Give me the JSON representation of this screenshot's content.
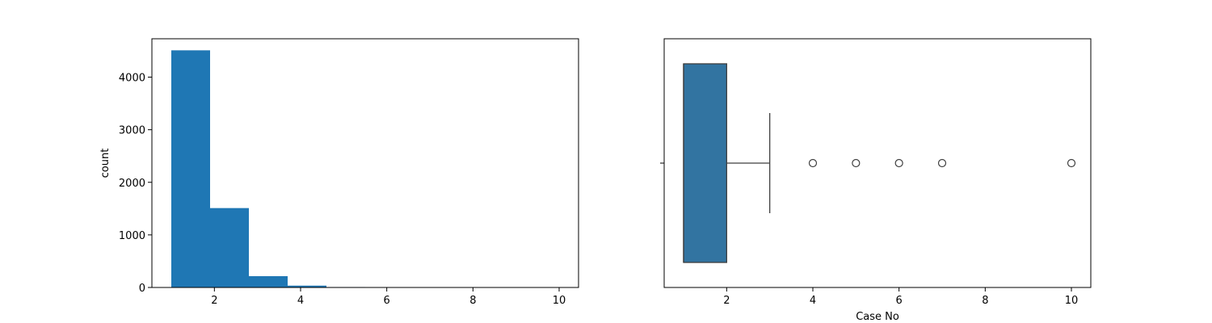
{
  "chart_data": [
    {
      "type": "histogram",
      "xlabel": "",
      "ylabel": "count",
      "xlim": [
        0.55,
        10.45
      ],
      "ylim": [
        0,
        4730
      ],
      "xticks": [
        2,
        4,
        6,
        8,
        10
      ],
      "yticks": [
        0,
        1000,
        2000,
        3000,
        4000
      ],
      "bins": [
        {
          "x0": 1.0,
          "x1": 1.9,
          "count": 4510
        },
        {
          "x0": 1.9,
          "x1": 2.8,
          "count": 1510
        },
        {
          "x0": 2.8,
          "x1": 3.7,
          "count": 215
        },
        {
          "x0": 3.7,
          "x1": 4.6,
          "count": 35
        },
        {
          "x0": 4.6,
          "x1": 5.5,
          "count": 8
        },
        {
          "x0": 5.5,
          "x1": 6.4,
          "count": 4
        },
        {
          "x0": 6.4,
          "x1": 7.3,
          "count": 2
        },
        {
          "x0": 7.3,
          "x1": 8.2,
          "count": 0
        },
        {
          "x0": 8.2,
          "x1": 9.1,
          "count": 0
        },
        {
          "x0": 9.1,
          "x1": 10.0,
          "count": 1
        }
      ],
      "color": "#1f77b4"
    },
    {
      "type": "boxplot",
      "xlabel": "Case No",
      "ylabel": "",
      "xlim": [
        0.55,
        10.45
      ],
      "xticks": [
        2,
        4,
        6,
        8,
        10
      ],
      "box": {
        "q1": 1,
        "median": 1,
        "q3": 2,
        "whisker_low": 1,
        "whisker_high": 3
      },
      "outliers": [
        4,
        5,
        6,
        7,
        10
      ],
      "color": "#3274a1"
    }
  ]
}
